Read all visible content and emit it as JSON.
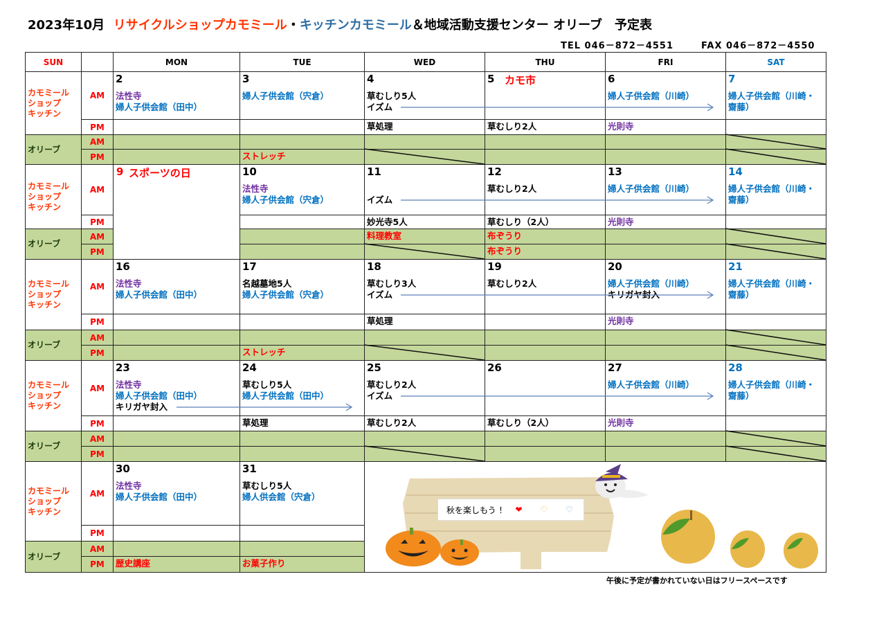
{
  "title": {
    "prefix": "2023年10月",
    "shop": "リサイクルショップカモミール",
    "sep": "・",
    "kitchen": "キッチンカモミール",
    "suffix": "＆地域活動支援センター オリーブ　予定表"
  },
  "contact": {
    "tel": "TEL 046－872－4551",
    "fax": "FAX 046－872－4550"
  },
  "header": {
    "days": [
      "SUN",
      "",
      "MON",
      "TUE",
      "WED",
      "THU",
      "FRI",
      "SAT"
    ],
    "sun_color": "#ff0000",
    "sat_color": "#0070c0"
  },
  "row_labels": {
    "kamomile": "カモミール\nショップ\nキッチン",
    "olive": "オリーブ",
    "am": "AM",
    "pm": "PM"
  },
  "colors": {
    "k": "#000000",
    "p": "#7030a0",
    "b": "#0070c0",
    "r": "#ff0000",
    "green": "#c4d79b",
    "arrow": "#5b7fb8"
  },
  "weeks": [
    {
      "cells": [
        {
          "date": "2",
          "am": [
            {
              "t": "法性寺",
              "c": "p"
            },
            {
              "t": "婦人子供会館（田中）",
              "c": "b"
            }
          ],
          "pm": [],
          "oam": [],
          "opm": []
        },
        {
          "date": "3",
          "am": [
            {
              "t": "婦人子供会館（宍倉）",
              "c": "b"
            }
          ],
          "pm": [],
          "oam": [],
          "opm": [
            {
              "t": "ストレッチ",
              "c": "r"
            }
          ]
        },
        {
          "date": "4",
          "am": [
            {
              "t": "草むしり5人",
              "c": "k"
            },
            {
              "t": "イズム",
              "c": "k"
            }
          ],
          "pm": [
            {
              "t": "草処理",
              "c": "k"
            }
          ],
          "oam": [],
          "opm": [],
          "opm_diag": true
        },
        {
          "date": "5",
          "holiday": "カモ市",
          "am": [],
          "pm": [
            {
              "t": "草むしり2人",
              "c": "k"
            }
          ],
          "oam": [],
          "opm": []
        },
        {
          "date": "6",
          "am": [
            {
              "t": "婦人子供会館（川崎）",
              "c": "b"
            }
          ],
          "pm": [
            {
              "t": "光則寺",
              "c": "p"
            }
          ],
          "oam": [],
          "opm": []
        },
        {
          "date": "7",
          "date_color": "b",
          "am": [
            {
              "t": "婦人子供会館（川崎・",
              "c": "b"
            },
            {
              "t": "齋藤）",
              "c": "b"
            }
          ],
          "pm": [],
          "oam": [],
          "opm": [],
          "oam_diag": true,
          "opm_diag": true
        }
      ],
      "arrows": [
        {
          "from": "WED",
          "to": "FRI",
          "line": 1,
          "after": "イズム"
        }
      ]
    },
    {
      "cells": [
        {
          "date": "9",
          "holiday": "スポーツの日",
          "date_color": "r",
          "merged": true
        },
        {
          "date": "10",
          "am": [
            {
              "t": "法性寺",
              "c": "p"
            },
            {
              "t": "婦人子供会館（宍倉）",
              "c": "b"
            }
          ],
          "pm": [],
          "oam": [],
          "opm": []
        },
        {
          "date": "11",
          "am": [
            {
              "t": "",
              "c": "k"
            },
            {
              "t": "イズム",
              "c": "k"
            }
          ],
          "pm": [
            {
              "t": "妙光寺5人",
              "c": "k"
            }
          ],
          "oam": [
            {
              "t": "料理教室",
              "c": "r"
            }
          ],
          "opm": [],
          "opm_diag": true
        },
        {
          "date": "12",
          "am": [
            {
              "t": "草むしり2人",
              "c": "k"
            }
          ],
          "pm": [
            {
              "t": "草むしり（2人）",
              "c": "k"
            }
          ],
          "oam": [
            {
              "t": "布ぞうり",
              "c": "r"
            }
          ],
          "opm": [
            {
              "t": "布ぞうり",
              "c": "r"
            }
          ]
        },
        {
          "date": "13",
          "am": [
            {
              "t": "婦人子供会館（川崎）",
              "c": "b"
            }
          ],
          "pm": [
            {
              "t": "光則寺",
              "c": "p"
            }
          ],
          "oam": [],
          "opm": []
        },
        {
          "date": "14",
          "date_color": "b",
          "am": [
            {
              "t": "婦人子供会館（川崎・",
              "c": "b"
            },
            {
              "t": "齋藤）",
              "c": "b"
            }
          ],
          "pm": [],
          "oam": [],
          "opm": [],
          "oam_diag": true,
          "opm_diag": true
        }
      ],
      "arrows": [
        {
          "from": "WED",
          "to": "FRI",
          "line": 1,
          "after": "イズム"
        }
      ]
    },
    {
      "cells": [
        {
          "date": "16",
          "am": [
            {
              "t": "法性寺",
              "c": "p"
            },
            {
              "t": "婦人子供会館（田中）",
              "c": "b"
            }
          ],
          "pm": [],
          "oam": [],
          "opm": []
        },
        {
          "date": "17",
          "am": [
            {
              "t": "名越墓地5人",
              "c": "k"
            },
            {
              "t": "婦人子供会館（宍倉）",
              "c": "b"
            }
          ],
          "pm": [],
          "oam": [],
          "opm": [
            {
              "t": "ストレッチ",
              "c": "r"
            }
          ]
        },
        {
          "date": "18",
          "am": [
            {
              "t": "草むしり3人",
              "c": "k"
            },
            {
              "t": "イズム",
              "c": "k"
            }
          ],
          "pm": [
            {
              "t": "草処理",
              "c": "k"
            }
          ],
          "oam": [],
          "opm": [],
          "opm_diag": true
        },
        {
          "date": "19",
          "am": [
            {
              "t": "草むしり2人",
              "c": "k"
            }
          ],
          "pm": [],
          "oam": [],
          "opm": []
        },
        {
          "date": "20",
          "am": [
            {
              "t": "婦人子供会館（川崎）",
              "c": "b"
            },
            {
              "t": "キリガヤ封入",
              "c": "k"
            }
          ],
          "pm": [
            {
              "t": "光則寺",
              "c": "p"
            }
          ],
          "oam": [],
          "opm": []
        },
        {
          "date": "21",
          "date_color": "b",
          "am": [
            {
              "t": "婦人子供会館（川崎・",
              "c": "b"
            },
            {
              "t": "齋藤）",
              "c": "b"
            }
          ],
          "pm": [],
          "oam": [],
          "opm": [],
          "oam_diag": true,
          "opm_diag": true
        }
      ],
      "arrows": [
        {
          "from": "WED",
          "to": "FRI",
          "line": 1,
          "after": "イズム"
        }
      ]
    },
    {
      "cells": [
        {
          "date": "23",
          "am": [
            {
              "t": "法性寺",
              "c": "p"
            },
            {
              "t": "婦人子供会館（田中）",
              "c": "b"
            },
            {
              "t": "キリガヤ封入",
              "c": "k"
            }
          ],
          "pm": [],
          "oam": [],
          "opm": []
        },
        {
          "date": "24",
          "am": [
            {
              "t": "草むしり5人",
              "c": "k"
            },
            {
              "t": "婦人子供会館（田中）",
              "c": "b"
            }
          ],
          "pm": [
            {
              "t": "草処理",
              "c": "k"
            }
          ],
          "oam": [],
          "opm": []
        },
        {
          "date": "25",
          "am": [
            {
              "t": "草むしり2人",
              "c": "k"
            },
            {
              "t": "イズム",
              "c": "k"
            }
          ],
          "pm": [
            {
              "t": "草むしり2人",
              "c": "k"
            }
          ],
          "oam": [],
          "opm": [],
          "opm_diag": true
        },
        {
          "date": "26",
          "am": [],
          "pm": [
            {
              "t": "草むしり（2人）",
              "c": "k"
            }
          ],
          "oam": [],
          "opm": []
        },
        {
          "date": "27",
          "am": [
            {
              "t": "婦人子供会館（川崎）",
              "c": "b"
            }
          ],
          "pm": [
            {
              "t": "光則寺",
              "c": "p"
            }
          ],
          "oam": [],
          "opm": []
        },
        {
          "date": "28",
          "date_color": "b",
          "am": [
            {
              "t": "婦人子供会館（川崎・",
              "c": "b"
            },
            {
              "t": "齋藤）",
              "c": "b"
            }
          ],
          "pm": [],
          "oam": [],
          "opm": [],
          "oam_diag": true,
          "opm_diag": true
        }
      ],
      "arrows": [
        {
          "from": "MON",
          "to": "TUE",
          "line": 2,
          "after": "キリガヤ封入"
        },
        {
          "from": "WED",
          "to": "FRI",
          "line": 1,
          "after": "イズム"
        }
      ]
    },
    {
      "cells": [
        {
          "date": "30",
          "am": [
            {
              "t": "法性寺",
              "c": "p"
            },
            {
              "t": "婦人子供会館（田中）",
              "c": "b"
            }
          ],
          "pm": [],
          "oam": [],
          "opm": [
            {
              "t": "歴史講座",
              "c": "r"
            }
          ]
        },
        {
          "date": "31",
          "am": [
            {
              "t": "草むしり5人",
              "c": "k"
            },
            {
              "t": "婦人供会館（宍倉）",
              "c": "b"
            }
          ],
          "pm": [],
          "oam": [],
          "opm": [
            {
              "t": "お菓子作り",
              "c": "r"
            }
          ]
        }
      ],
      "arrows": []
    }
  ],
  "illustration": {
    "sign_text": "秋を楽しもう ！",
    "hearts": [
      "red-heart-icon",
      "yellow-heart-icon",
      "blue-heart-icon"
    ]
  },
  "footnote": "午後に予定が書かれていない日はフリースペースです"
}
